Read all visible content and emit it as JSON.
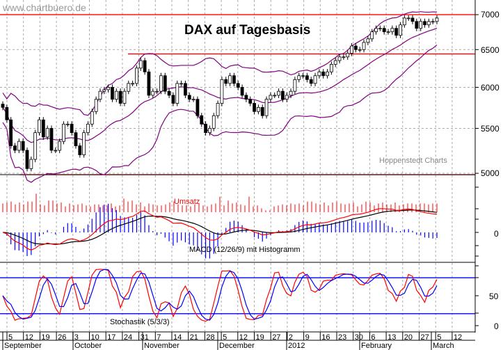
{
  "watermark": "www.chartbuero.de",
  "source_label": "Hoppenstedt Charts",
  "chart_data": [
    {
      "type": "candlestick",
      "title": "DAX auf Tagesbasis",
      "scale": "log",
      "ylim": [
        4950,
        7150
      ],
      "y_ticks": [
        "7000",
        "6500",
        "6000",
        "5500",
        "5000"
      ],
      "y_tick_values": [
        7000,
        6500,
        6000,
        5500,
        5000
      ],
      "grid": true,
      "indicators": "Bollinger bands (purple)",
      "horizontal_lines": [
        {
          "value": 7000,
          "color": "#ff0000"
        },
        {
          "value": 6440,
          "color": "#ff0000"
        },
        {
          "value": 4985,
          "color": "#ff0000"
        }
      ],
      "closes": [
        5750,
        5600,
        5300,
        5250,
        5350,
        5250,
        5050,
        5150,
        5450,
        5600,
        5400,
        5500,
        5250,
        5250,
        5350,
        5550,
        5550,
        5450,
        5300,
        5200,
        5450,
        5550,
        5700,
        5850,
        5950,
        5970,
        6000,
        5850,
        5950,
        5800,
        5950,
        6050,
        6050,
        6250,
        6350,
        6200,
        5900,
        5950,
        5950,
        6150,
        5950,
        5900,
        5800,
        6050,
        6050,
        5900,
        5850,
        5850,
        5650,
        5550,
        5450,
        5500,
        5650,
        5800,
        6100,
        6050,
        6150,
        6050,
        6000,
        5900,
        5850,
        5800,
        5700,
        5750,
        5650,
        5850,
        5900,
        5900,
        5950,
        5850,
        5900,
        5950,
        6100,
        6150,
        6150,
        6100,
        6050,
        6150,
        6200,
        6150,
        6200,
        6300,
        6350,
        6400,
        6400,
        6450,
        6550,
        6500,
        6500,
        6600,
        6650,
        6750,
        6800,
        6800,
        6750,
        6750,
        6800,
        6700,
        6850,
        6950,
        6950,
        6900,
        6800,
        6900,
        6850,
        6900,
        6900,
        6950
      ]
    },
    {
      "type": "bar",
      "title": "Umsatz",
      "color": "#ff0000",
      "values": [
        45,
        50,
        55,
        40,
        50,
        40,
        55,
        55,
        95,
        40,
        35,
        60,
        60,
        45,
        50,
        30,
        45,
        35,
        40,
        45,
        35,
        30,
        40,
        40,
        35,
        35,
        45,
        30,
        35,
        70,
        55,
        60,
        40,
        50,
        30,
        45,
        40,
        35,
        35,
        40,
        50,
        55,
        40,
        35,
        35,
        30,
        40,
        45,
        35,
        30,
        40,
        45,
        80,
        35,
        60,
        45,
        50,
        40,
        35,
        80,
        30,
        35,
        20,
        10,
        10,
        30,
        35,
        40,
        35,
        45,
        40,
        45,
        35,
        55,
        55,
        45,
        40,
        50,
        35,
        50,
        55,
        45,
        40,
        45,
        50,
        30,
        40,
        55,
        50,
        35,
        45,
        50,
        40,
        40,
        50,
        35,
        40,
        45,
        45,
        40,
        45,
        45,
        40,
        45,
        45
      ]
    },
    {
      "type": "line",
      "title": "MACD (12/26/9) mit Histogramm",
      "y_ticks": [
        "0"
      ],
      "series_colors": {
        "macd": "#ff0000",
        "signal": "#000000",
        "histogram": "#0000ff"
      },
      "params": [
        12,
        26,
        9
      ]
    },
    {
      "type": "line",
      "title": "Stochastik (5/3/3)",
      "y_ticks": [
        "50",
        "0"
      ],
      "ylim": [
        0,
        100
      ],
      "levels": [
        80,
        20
      ],
      "series_colors": {
        "k": "#ff0000",
        "d": "#0000ff"
      },
      "params": [
        5,
        3,
        3
      ]
    }
  ],
  "x_axis": {
    "day_ticks": [
      "5",
      "12",
      "19",
      "26",
      "3",
      "10",
      "17",
      "24",
      "31",
      "7",
      "14",
      "21",
      "28",
      "5",
      "12",
      "19",
      "27",
      "2",
      "9",
      "16",
      "23",
      "30",
      "6",
      "13",
      "20",
      "27",
      "5",
      "12"
    ],
    "months": [
      "September",
      "October",
      "November",
      "December",
      "2012",
      "February",
      "March"
    ]
  }
}
